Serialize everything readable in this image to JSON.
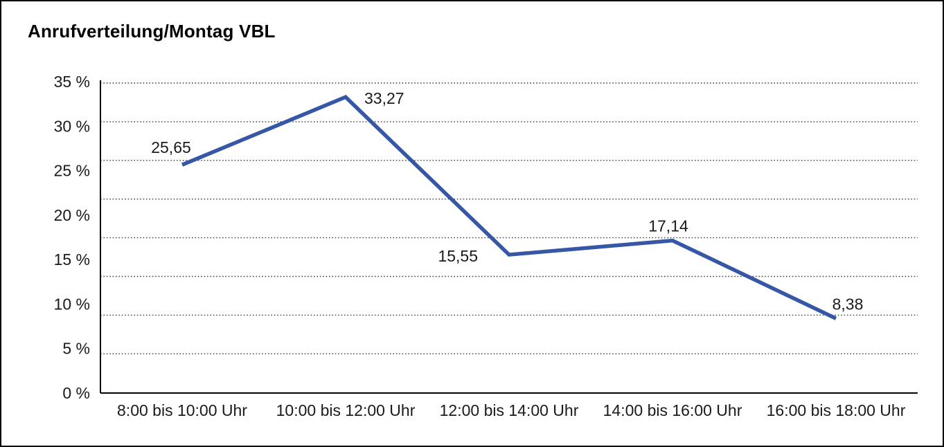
{
  "window": {
    "background_color": "#ffffff",
    "border_color": "#000000"
  },
  "header": {
    "title": "Anrufverteilung/Montag VBL"
  },
  "chart_data": {
    "type": "line",
    "title": "Anrufverteilung/Montag VBL",
    "categories": [
      "8:00 bis 10:00 Uhr",
      "10:00 bis 12:00 Uhr",
      "12:00 bis 14:00 Uhr",
      "14:00 bis 16:00 Uhr",
      "16:00 bis 18:00 Uhr"
    ],
    "values": [
      25.65,
      33.27,
      15.55,
      17.14,
      8.38
    ],
    "point_labels": [
      "25,65",
      "33,27",
      "15,55",
      "17,14",
      "8,38"
    ],
    "xlabel": "",
    "ylabel": "",
    "ylim": [
      0,
      35
    ],
    "y_tick_values": [
      35,
      30,
      25,
      20,
      15,
      10,
      5,
      0
    ],
    "y_tick_labels": [
      "35 %",
      "30 %",
      "25 %",
      "20 %",
      "15 %",
      "10 %",
      "5 %",
      "0 %"
    ],
    "grid": {
      "orientation": "horizontal",
      "style": "dotted",
      "color": "#3a3a3a"
    },
    "legend": "none",
    "line_color": "#3656A6",
    "text_color": "#1a1a1a",
    "axis_color": "#000000"
  }
}
